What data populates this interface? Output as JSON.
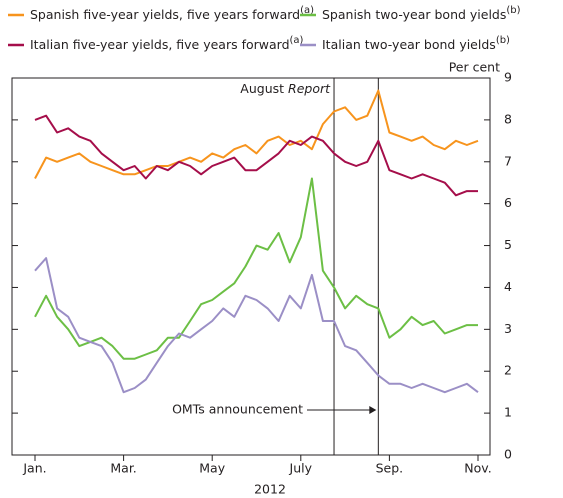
{
  "chart_data": {
    "type": "line",
    "xlabel": "2012",
    "y_unit": "Per cent",
    "categories": [
      "Jan.",
      null,
      null,
      null,
      null,
      null,
      null,
      null,
      "Mar.",
      null,
      null,
      null,
      null,
      null,
      null,
      null,
      "May",
      null,
      null,
      null,
      null,
      null,
      null,
      null,
      "July",
      null,
      null,
      null,
      null,
      null,
      null,
      null,
      "Sep.",
      null,
      null,
      null,
      null,
      null,
      null,
      null,
      "Nov."
    ],
    "ylim": [
      0,
      9
    ],
    "yticks": [
      0,
      1,
      2,
      3,
      4,
      5,
      6,
      7,
      8,
      9
    ],
    "series": [
      {
        "name": "Spanish five-year yields, five years forward",
        "note": "(a)",
        "color": "#f7941d",
        "values": [
          6.6,
          7.1,
          7.0,
          7.1,
          7.2,
          7.0,
          6.9,
          6.8,
          6.7,
          6.7,
          6.8,
          6.9,
          6.9,
          7.0,
          7.1,
          7.0,
          7.2,
          7.1,
          7.3,
          7.4,
          7.2,
          7.5,
          7.6,
          7.4,
          7.5,
          7.3,
          7.9,
          8.2,
          8.3,
          8.0,
          8.1,
          8.7,
          7.7,
          7.6,
          7.5,
          7.6,
          7.4,
          7.3,
          7.5,
          7.4,
          7.5
        ]
      },
      {
        "name": "Italian five-year yields, five years forward",
        "note": "(a)",
        "color": "#a50e4a",
        "values": [
          8.0,
          8.1,
          7.7,
          7.8,
          7.6,
          7.5,
          7.2,
          7.0,
          6.8,
          6.9,
          6.6,
          6.9,
          6.8,
          7.0,
          6.9,
          6.7,
          6.9,
          7.0,
          7.1,
          6.8,
          6.8,
          7.0,
          7.2,
          7.5,
          7.4,
          7.6,
          7.5,
          7.2,
          7.0,
          6.9,
          7.0,
          7.5,
          6.8,
          6.7,
          6.6,
          6.7,
          6.6,
          6.5,
          6.2,
          6.3,
          6.3
        ]
      },
      {
        "name": "Spanish two-year bond yields",
        "note": "(b)",
        "color": "#6cbf45",
        "values": [
          3.3,
          3.8,
          3.3,
          3.0,
          2.6,
          2.7,
          2.8,
          2.6,
          2.3,
          2.3,
          2.4,
          2.5,
          2.8,
          2.8,
          3.2,
          3.6,
          3.7,
          3.9,
          4.1,
          4.5,
          5.0,
          4.9,
          5.3,
          4.6,
          5.2,
          6.6,
          4.4,
          4.0,
          3.5,
          3.8,
          3.6,
          3.5,
          2.8,
          3.0,
          3.3,
          3.1,
          3.2,
          2.9,
          3.0,
          3.1,
          3.1
        ]
      },
      {
        "name": "Italian two-year bond yields",
        "note": "(b)",
        "color": "#9b8fc6",
        "values": [
          4.4,
          4.7,
          3.5,
          3.3,
          2.8,
          2.7,
          2.6,
          2.2,
          1.5,
          1.6,
          1.8,
          2.2,
          2.6,
          2.9,
          2.8,
          3.0,
          3.2,
          3.5,
          3.3,
          3.8,
          3.7,
          3.5,
          3.2,
          3.8,
          3.5,
          4.3,
          3.2,
          3.2,
          2.6,
          2.5,
          2.2,
          1.9,
          1.7,
          1.7,
          1.6,
          1.7,
          1.6,
          1.5,
          1.6,
          1.7,
          1.5
        ]
      }
    ],
    "markers": [
      {
        "label": "August",
        "label_italic": "Report",
        "at": 27
      },
      {
        "label": "OMTs announcement",
        "at": 31
      }
    ]
  }
}
